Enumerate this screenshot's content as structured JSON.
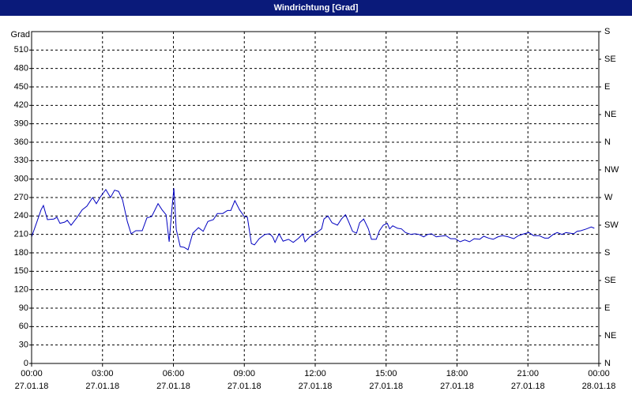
{
  "chart_data": {
    "type": "line",
    "title": "Windrichtung [Grad]",
    "y_axis_label": "Grad",
    "grid": true,
    "xlim": [
      0,
      24
    ],
    "xticks": [
      {
        "value": 0,
        "label": "00:00\n27.01.18"
      },
      {
        "value": 3,
        "label": "03:00\n27.01.18"
      },
      {
        "value": 6,
        "label": "06:00\n27.01.18"
      },
      {
        "value": 9,
        "label": "09:00\n27.01.18"
      },
      {
        "value": 12,
        "label": "12:00\n27.01.18"
      },
      {
        "value": 15,
        "label": "15:00\n27.01.18"
      },
      {
        "value": 18,
        "label": "18:00\n27.01.18"
      },
      {
        "value": 21,
        "label": "21:00\n27.01.18"
      },
      {
        "value": 24,
        "label": "00:00\n28.01.18"
      }
    ],
    "ylim": [
      0,
      540
    ],
    "yticks": [
      0,
      30,
      60,
      90,
      120,
      150,
      180,
      210,
      240,
      270,
      300,
      330,
      360,
      390,
      420,
      450,
      480,
      510
    ],
    "y2lim": [
      0,
      540
    ],
    "y2ticks": [
      {
        "value": 0,
        "label": "N"
      },
      {
        "value": 45,
        "label": "NE"
      },
      {
        "value": 90,
        "label": "E"
      },
      {
        "value": 135,
        "label": "SE"
      },
      {
        "value": 180,
        "label": "S"
      },
      {
        "value": 225,
        "label": "SW"
      },
      {
        "value": 270,
        "label": "W"
      },
      {
        "value": 315,
        "label": "NW"
      },
      {
        "value": 360,
        "label": "N"
      },
      {
        "value": 405,
        "label": "NE"
      },
      {
        "value": 450,
        "label": "E"
      },
      {
        "value": 495,
        "label": "SE"
      },
      {
        "value": 540,
        "label": "S"
      }
    ],
    "series": [
      {
        "color": "#0000c0",
        "x": [
          0,
          0.23,
          0.4,
          0.5,
          0.67,
          0.94,
          1.07,
          1.2,
          1.4,
          1.51,
          1.67,
          1.91,
          2.14,
          2.34,
          2.58,
          2.74,
          2.91,
          3.14,
          3.34,
          3.51,
          3.68,
          3.85,
          4.05,
          4.21,
          4.41,
          4.68,
          4.88,
          5.08,
          5.35,
          5.52,
          5.69,
          5.82,
          5.95,
          6.02,
          6.12,
          6.29,
          6.45,
          6.62,
          6.82,
          7.06,
          7.26,
          7.46,
          7.69,
          7.86,
          8.09,
          8.29,
          8.43,
          8.6,
          8.8,
          9.0,
          9.13,
          9.3,
          9.43,
          9.63,
          9.87,
          10.07,
          10.2,
          10.3,
          10.47,
          10.64,
          10.87,
          11.07,
          11.3,
          11.47,
          11.57,
          11.77,
          11.94,
          12.14,
          12.27,
          12.37,
          12.54,
          12.71,
          12.94,
          13.11,
          13.28,
          13.41,
          13.58,
          13.75,
          13.88,
          14.05,
          14.25,
          14.38,
          14.58,
          14.72,
          14.88,
          15.05,
          15.15,
          15.28,
          15.48,
          15.65,
          15.82,
          16.05,
          16.22,
          16.39,
          16.59,
          16.76,
          16.92,
          17.12,
          17.29,
          17.53,
          17.73,
          17.93,
          18.13,
          18.33,
          18.53,
          18.73,
          18.96,
          19.13,
          19.33,
          19.53,
          19.73,
          19.93,
          20.17,
          20.4,
          20.6,
          20.84,
          21.04,
          21.24,
          21.47,
          21.71,
          21.87,
          22.07,
          22.24,
          22.44,
          22.61,
          22.78,
          22.94,
          23.08,
          23.24,
          23.48,
          23.68,
          23.81
        ],
        "values": [
          206,
          231,
          250,
          257,
          234,
          235,
          238,
          228,
          230,
          233,
          225,
          237,
          250,
          256,
          270,
          260,
          271,
          283,
          270,
          282,
          280,
          266,
          231,
          211,
          216,
          216,
          237,
          239,
          260,
          250,
          242,
          198,
          257,
          285,
          218,
          190,
          189,
          185,
          212,
          221,
          215,
          231,
          234,
          244,
          244,
          249,
          249,
          265,
          250,
          239,
          238,
          195,
          193,
          203,
          210,
          211,
          206,
          197,
          211,
          199,
          202,
          197,
          204,
          211,
          198,
          206,
          210,
          215,
          219,
          235,
          240,
          229,
          225,
          235,
          242,
          231,
          215,
          212,
          229,
          235,
          219,
          202,
          202,
          216,
          225,
          228,
          219,
          224,
          220,
          219,
          213,
          210,
          211,
          210,
          206,
          210,
          211,
          206,
          207,
          208,
          203,
          203,
          198,
          201,
          198,
          203,
          202,
          207,
          204,
          202,
          206,
          208,
          206,
          203,
          208,
          211,
          213,
          208,
          208,
          204,
          204,
          210,
          213,
          210,
          213,
          212,
          211,
          215,
          216,
          219,
          222,
          220
        ]
      }
    ]
  }
}
